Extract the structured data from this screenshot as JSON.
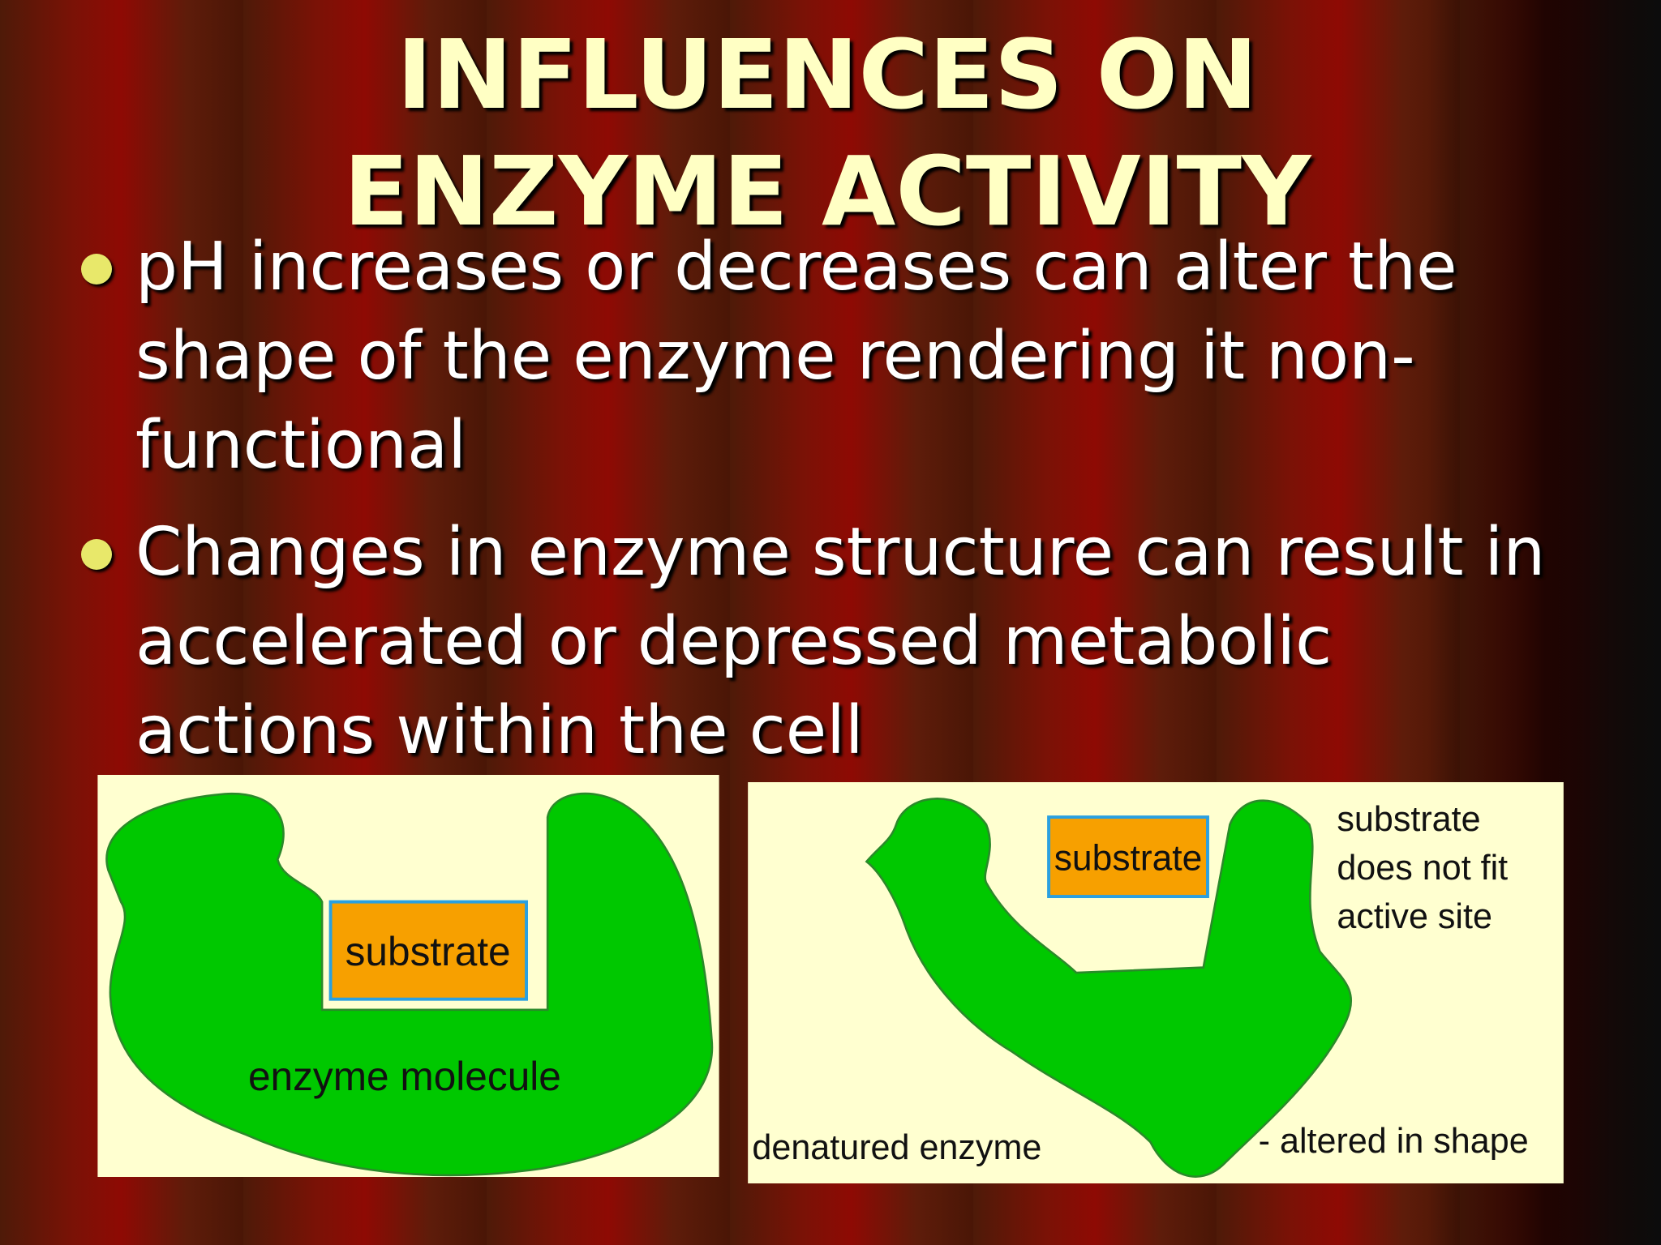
{
  "title": "INFLUENCES ON ENZYME ACTIVITY",
  "bullets": [
    "pH increases or decreases can alter the shape of the enzyme rendering it non-functional",
    "Changes in enzyme structure can result in accelerated or depressed metabolic actions within the cell"
  ],
  "diagrams": [
    {
      "substrate": "substrate",
      "label": "enzyme molecule"
    },
    {
      "substrate": "substrate",
      "caption": [
        "substrate",
        "does not fit",
        "active site"
      ],
      "label": "denatured enzyme",
      "note": "- altered in shape"
    }
  ]
}
